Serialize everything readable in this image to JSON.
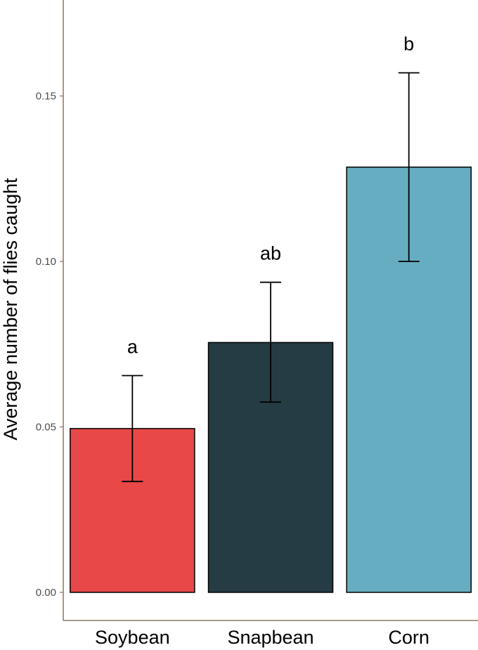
{
  "chart_data": {
    "type": "bar",
    "categories": [
      "Soybean",
      "Snapbean",
      "Corn"
    ],
    "values": [
      0.0495,
      0.0755,
      0.1285
    ],
    "error_low": [
      0.0335,
      0.0575,
      0.1
    ],
    "error_high": [
      0.0655,
      0.0937,
      0.157
    ],
    "significance_letters": [
      "a",
      "ab",
      "b"
    ],
    "colors": [
      "#e84848",
      "#253c44",
      "#67adc2"
    ],
    "ylabel": "Average number of flies caught",
    "xlabel": "",
    "ylim": [
      -0.0085,
      0.179
    ],
    "yticks": [
      "0.00",
      "0.05",
      "0.10",
      "0.15"
    ],
    "grid": false,
    "axis_color": "#8b7560"
  }
}
